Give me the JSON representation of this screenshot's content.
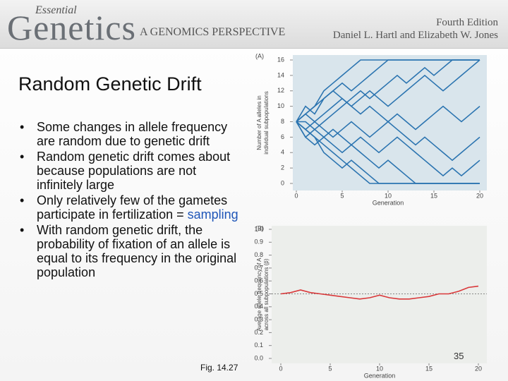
{
  "header": {
    "logo_small": "Essential",
    "logo_large": "Genetics",
    "subtitle": "A GENOMICS PERSPECTIVE",
    "edition": "Fourth Edition",
    "authors": "Daniel L. Hartl and Elizabeth W. Jones"
  },
  "title": "Random Genetic Drift",
  "bullets": [
    "Some changes in allele frequency are random due to genetic drift",
    "Random genetic drift comes about because populations are not infinitely large",
    {
      "text": "Only relatively few of the gametes participate in fertilization = ",
      "highlight": "sampling"
    },
    "With random genetic drift, the probability of fixation of an allele is equal to its frequency in the original population"
  ],
  "figure_caption": "Fig. 14.27",
  "page_number": "35",
  "chart_data": [
    {
      "type": "line",
      "panel_label": "(A)",
      "xlabel": "Generation",
      "ylabel_lines": [
        "Number of A alleles in",
        "individual subpopulations"
      ],
      "x": [
        0,
        1,
        2,
        3,
        4,
        5,
        6,
        7,
        8,
        9,
        10,
        11,
        12,
        13,
        14,
        15,
        16,
        17,
        18,
        19,
        20
      ],
      "xlim": [
        0,
        20
      ],
      "xticks": [
        0,
        5,
        10,
        15,
        20
      ],
      "ylim": [
        0,
        16
      ],
      "yticks": [
        0,
        2,
        4,
        6,
        8,
        10,
        12,
        14,
        16
      ],
      "background": "#d9e5ec",
      "series": [
        {
          "color": "#2b74b0",
          "values": [
            8,
            9,
            10,
            11,
            12,
            13,
            12,
            13,
            14,
            15,
            16,
            16,
            16,
            16,
            16,
            16,
            16,
            16,
            16,
            16,
            16
          ]
        },
        {
          "color": "#2b74b0",
          "values": [
            8,
            7,
            6,
            5,
            4,
            3,
            2,
            1,
            0,
            0,
            0,
            0,
            0,
            0,
            0,
            0,
            0,
            0,
            0,
            0,
            0
          ]
        },
        {
          "color": "#2b74b0",
          "values": [
            8,
            8,
            7,
            8,
            9,
            10,
            11,
            12,
            11,
            12,
            13,
            14,
            13,
            14,
            15,
            14,
            15,
            16,
            16,
            16,
            16
          ]
        },
        {
          "color": "#2b74b0",
          "values": [
            8,
            6,
            7,
            6,
            5,
            4,
            5,
            4,
            3,
            2,
            3,
            2,
            1,
            0,
            0,
            0,
            0,
            0,
            0,
            0,
            0
          ]
        },
        {
          "color": "#2b74b0",
          "values": [
            8,
            9,
            8,
            9,
            10,
            11,
            10,
            11,
            12,
            11,
            10,
            11,
            12,
            13,
            14,
            13,
            12,
            13,
            14,
            15,
            16
          ]
        },
        {
          "color": "#2b74b0",
          "values": [
            8,
            7,
            8,
            7,
            6,
            7,
            8,
            7,
            6,
            7,
            8,
            9,
            8,
            7,
            8,
            9,
            10,
            9,
            8,
            9,
            10
          ]
        },
        {
          "color": "#2b74b0",
          "values": [
            8,
            10,
            9,
            11,
            12,
            11,
            10,
            9,
            10,
            9,
            8,
            7,
            6,
            5,
            6,
            5,
            4,
            3,
            4,
            5,
            6
          ]
        },
        {
          "color": "#2b74b0",
          "values": [
            8,
            6,
            5,
            6,
            7,
            6,
            5,
            6,
            5,
            4,
            5,
            6,
            5,
            4,
            3,
            2,
            1,
            2,
            1,
            2,
            3
          ]
        },
        {
          "color": "#2b74b0",
          "values": [
            8,
            9,
            10,
            12,
            13,
            14,
            15,
            16,
            16,
            16,
            16,
            16,
            16,
            16,
            16,
            16,
            16,
            16,
            16,
            16,
            16
          ]
        },
        {
          "color": "#2b74b0",
          "values": [
            8,
            7,
            6,
            4,
            3,
            2,
            3,
            2,
            1,
            0,
            0,
            0,
            0,
            0,
            0,
            0,
            0,
            0,
            0,
            0,
            0
          ]
        }
      ]
    },
    {
      "type": "line",
      "panel_label": "(B)",
      "xlabel": "Generation",
      "ylabel_lines": [
        "Average allele frequency of A",
        "across all subpopulations (p̄)"
      ],
      "x": [
        0,
        1,
        2,
        3,
        4,
        5,
        6,
        7,
        8,
        9,
        10,
        11,
        12,
        13,
        14,
        15,
        16,
        17,
        18,
        19,
        20
      ],
      "xlim": [
        0,
        20
      ],
      "xticks": [
        0,
        5,
        10,
        15,
        20
      ],
      "ylim": [
        0,
        1
      ],
      "yticks": [
        {
          "value": 0,
          "label": "0.0"
        },
        0.1,
        0.2,
        0.3,
        0.4,
        0.5,
        0.6,
        0.7,
        0.8,
        0.9,
        {
          "value": 1,
          "label": "1.0"
        }
      ],
      "reference_line": 0.5,
      "background": "#eceeeb",
      "series": [
        {
          "color": "#d9383a",
          "values": [
            0.5,
            0.51,
            0.53,
            0.51,
            0.5,
            0.49,
            0.48,
            0.47,
            0.46,
            0.47,
            0.49,
            0.47,
            0.46,
            0.46,
            0.47,
            0.48,
            0.5,
            0.5,
            0.52,
            0.55,
            0.56
          ]
        }
      ]
    }
  ]
}
